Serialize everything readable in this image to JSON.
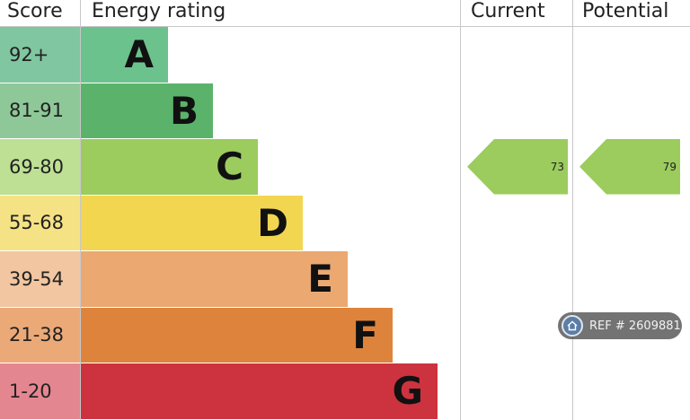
{
  "headers": {
    "score": "Score",
    "energy_rating": "Energy rating",
    "current": "Current",
    "potential": "Potential"
  },
  "chart_data": {
    "type": "bar",
    "bands": [
      {
        "score": "92+",
        "letter": "A",
        "color": "#6cc28d",
        "score_bg": "#80c6a1"
      },
      {
        "score": "81-91",
        "letter": "B",
        "color": "#5bb36b",
        "score_bg": "#8ec898"
      },
      {
        "score": "69-80",
        "letter": "C",
        "color": "#9bcc5d",
        "score_bg": "#bde094"
      },
      {
        "score": "55-68",
        "letter": "D",
        "color": "#f2d64f",
        "score_bg": "#f5e285"
      },
      {
        "score": "39-54",
        "letter": "E",
        "color": "#eba871",
        "score_bg": "#f1c6a1"
      },
      {
        "score": "21-38",
        "letter": "F",
        "color": "#de833b",
        "score_bg": "#eca978"
      },
      {
        "score": "1-20",
        "letter": "G",
        "color": "#cc333f",
        "score_bg": "#e48690"
      }
    ],
    "current": {
      "value": "73",
      "band": "C"
    },
    "potential": {
      "value": "79",
      "band": "C"
    }
  },
  "watermark": {
    "text": "REF # 2609881"
  }
}
